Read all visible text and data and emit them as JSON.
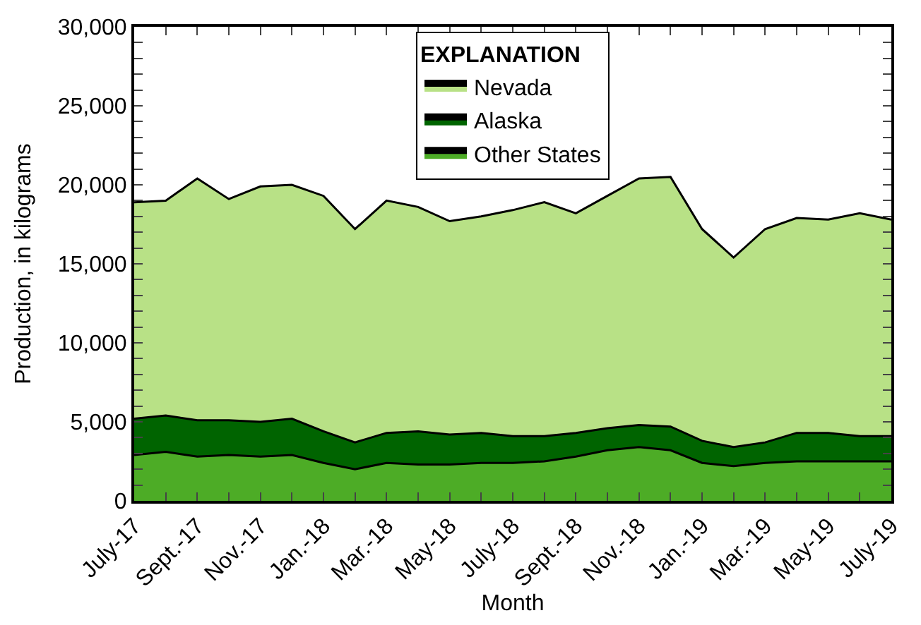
{
  "chart_data": {
    "type": "area",
    "stacked": true,
    "xlabel": "Month",
    "ylabel": "Production, in kilograms",
    "legend_title": "EXPLANATION",
    "legend": "top",
    "categories": [
      "July-17",
      null,
      "Sept.-17",
      null,
      "Nov.-17",
      null,
      "Jan.-18",
      null,
      "Mar.-18",
      null,
      "May-18",
      null,
      "July-18",
      null,
      "Sept.-18",
      null,
      "Nov.-18",
      null,
      "Jan.-19",
      null,
      "Mar.-19",
      null,
      "May-19",
      null,
      "July-19"
    ],
    "ylim": [
      0,
      30000
    ],
    "yticks": [
      0,
      {
        "value": 1000,
        "label": null
      },
      {
        "value": 2000,
        "label": null
      },
      {
        "value": 3000,
        "label": null
      },
      {
        "value": 4000,
        "label": null
      },
      {
        "value": 5000,
        "label": "5,000"
      },
      {
        "value": 6000,
        "label": null
      },
      {
        "value": 7000,
        "label": null
      },
      {
        "value": 8000,
        "label": null
      },
      {
        "value": 9000,
        "label": null
      },
      {
        "value": 10000,
        "label": "10,000"
      },
      {
        "value": 11000,
        "label": null
      },
      {
        "value": 12000,
        "label": null
      },
      {
        "value": 13000,
        "label": null
      },
      {
        "value": 14000,
        "label": null
      },
      {
        "value": 15000,
        "label": "15,000"
      },
      {
        "value": 16000,
        "label": null
      },
      {
        "value": 17000,
        "label": null
      },
      {
        "value": 18000,
        "label": null
      },
      {
        "value": 19000,
        "label": null
      },
      {
        "value": 20000,
        "label": "20,000"
      },
      {
        "value": 21000,
        "label": null
      },
      {
        "value": 22000,
        "label": null
      },
      {
        "value": 23000,
        "label": null
      },
      {
        "value": 24000,
        "label": null
      },
      {
        "value": 25000,
        "label": "25,000"
      },
      {
        "value": 26000,
        "label": null
      },
      {
        "value": 27000,
        "label": null
      },
      {
        "value": 28000,
        "label": null
      },
      {
        "value": 29000,
        "label": null
      },
      {
        "value": 30000,
        "label": "30,000"
      }
    ],
    "series": [
      {
        "name": "Other States",
        "color": "#4dac26",
        "values": [
          2900,
          3100,
          2800,
          2900,
          2800,
          2900,
          2400,
          2000,
          2400,
          2300,
          2300,
          2400,
          2400,
          2500,
          2800,
          3200,
          3400,
          3200,
          2400,
          2200,
          2400,
          2500,
          2500,
          2500,
          2500
        ]
      },
      {
        "name": "Alaska",
        "color": "#006400",
        "values": [
          2300,
          2300,
          2300,
          2200,
          2200,
          2300,
          2000,
          1700,
          1900,
          2100,
          1900,
          1900,
          1700,
          1600,
          1500,
          1400,
          1400,
          1500,
          1400,
          1200,
          1300,
          1800,
          1800,
          1600,
          1600
        ]
      },
      {
        "name": "Nevada",
        "color": "#b8e186",
        "values": [
          13700,
          13600,
          15300,
          14000,
          14900,
          14800,
          14900,
          13500,
          14700,
          14200,
          13500,
          13700,
          14300,
          14800,
          13900,
          14700,
          15600,
          15800,
          13400,
          12000,
          13500,
          13600,
          13500,
          14100,
          13700
        ]
      }
    ]
  }
}
